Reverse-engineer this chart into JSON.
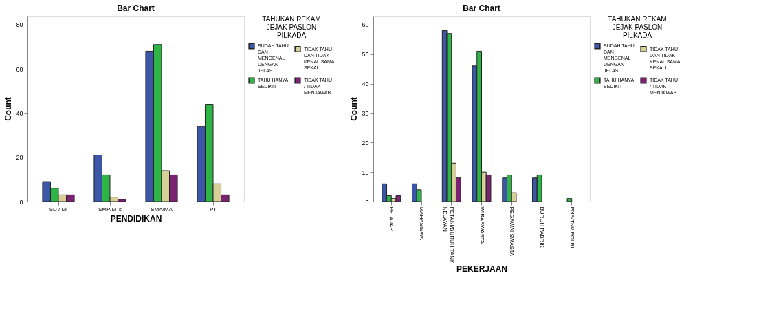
{
  "chart_data": [
    {
      "type": "bar",
      "title": "Bar Chart",
      "xlabel": "PENDIDIKAN",
      "ylabel": "Count",
      "legend_title": "TAHUKAN REKAM JEJAK PASLON PILKADA",
      "legend": "right",
      "grid": false,
      "categories": [
        "SD / MI",
        "SMP/MTs",
        "SMA/MA",
        "PT"
      ],
      "ylim": [
        0,
        84
      ],
      "yticks": [
        0,
        20,
        40,
        60,
        80
      ],
      "series": [
        {
          "name": "SUDAH TAHU DAN MENGENAL DENGAN JELAS",
          "color": "#3c56a8",
          "values": [
            9,
            21,
            68,
            34
          ]
        },
        {
          "name": "TAHU HANYA SEDIKIT",
          "color": "#2fb547",
          "values": [
            6,
            12,
            71,
            44
          ]
        },
        {
          "name": "TIDAK TAHU DAN TIDAK KENAL SAMA SEKALI",
          "color": "#d6cf98",
          "values": [
            3,
            2,
            14,
            8
          ]
        },
        {
          "name": "TIDAK TAHU / TIDAK MENJAWAB",
          "color": "#7b2272",
          "values": [
            3,
            1,
            12,
            3
          ]
        }
      ]
    },
    {
      "type": "bar",
      "title": "Bar Chart",
      "xlabel": "PEKERJAAN",
      "ylabel": "Count",
      "legend_title": "TAHUKAN REKAM JEJAK PASLON PILKADA",
      "legend": "right",
      "grid": false,
      "categories": [
        "PELAJAR",
        "MAHASISWA",
        "PETANI/BURUH TANI/ NELAYAN",
        "WIRASWASTA",
        "PEGAWAI SWASTA",
        "BURUH PABRIK",
        "PNS/TNI/ POLRI"
      ],
      "ylim": [
        0,
        63
      ],
      "yticks": [
        0,
        10,
        20,
        30,
        40,
        50,
        60
      ],
      "series": [
        {
          "name": "SUDAH TAHU DAN MENGENAL DENGAN JELAS",
          "color": "#3c56a8",
          "values": [
            6,
            6,
            58,
            46,
            8,
            8,
            null
          ]
        },
        {
          "name": "TAHU HANYA SEDIKIT",
          "color": "#2fb547",
          "values": [
            2,
            4,
            57,
            51,
            9,
            9,
            1
          ]
        },
        {
          "name": "TIDAK TAHU DAN TIDAK KENAL SAMA SEKALI",
          "color": "#d6cf98",
          "values": [
            1,
            null,
            13,
            10,
            3,
            null,
            null
          ]
        },
        {
          "name": "TIDAK TAHU / TIDAK MENJAWAB",
          "color": "#7b2272",
          "values": [
            2,
            null,
            8,
            9,
            null,
            null,
            null
          ]
        }
      ]
    }
  ]
}
